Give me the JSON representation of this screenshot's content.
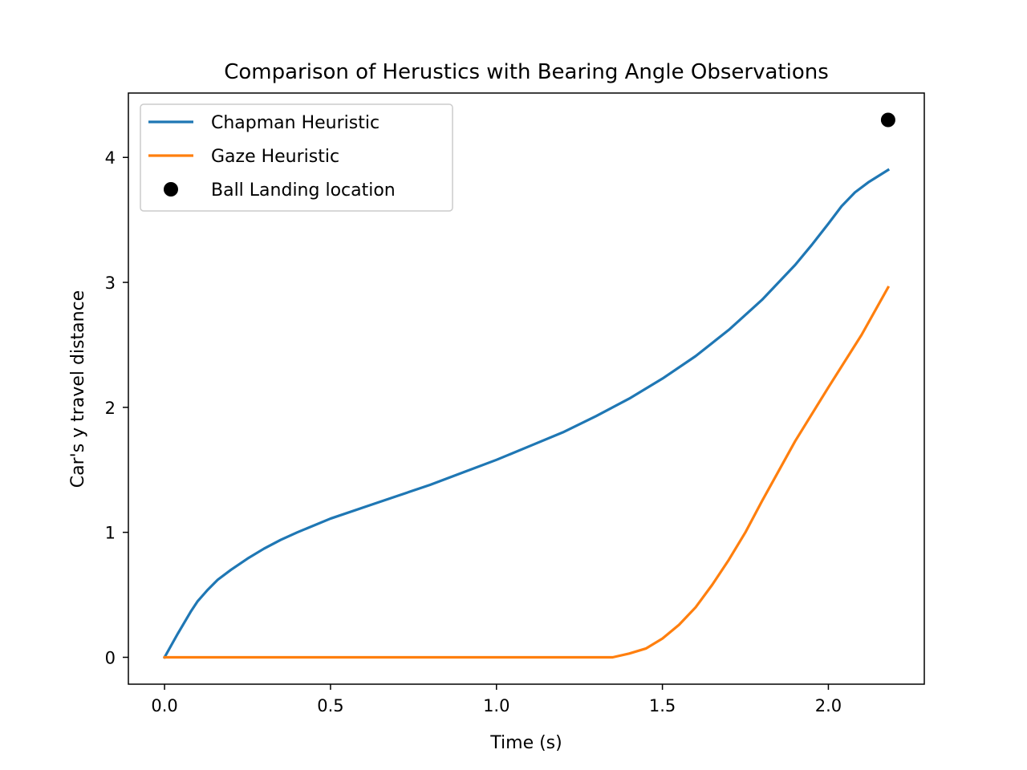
{
  "chart_data": {
    "type": "line",
    "title": "Comparison of Herustics with Bearing Angle Observations",
    "xlabel": "Time (s)",
    "ylabel": "Car's y travel distance",
    "xlim": [
      -0.109,
      2.289
    ],
    "ylim": [
      -0.215,
      4.515
    ],
    "xticks": [
      0.0,
      0.5,
      1.0,
      1.5,
      2.0
    ],
    "xtick_labels": [
      "0.0",
      "0.5",
      "1.0",
      "1.5",
      "2.0"
    ],
    "yticks": [
      0,
      1,
      2,
      3,
      4
    ],
    "ytick_labels": [
      "0",
      "1",
      "2",
      "3",
      "4"
    ],
    "grid": false,
    "legend_position": "upper-left",
    "series": [
      {
        "name": "Chapman Heuristic",
        "kind": "line",
        "color": "#1f77b4",
        "points": [
          [
            0.0,
            0.0
          ],
          [
            0.04,
            0.19
          ],
          [
            0.08,
            0.37
          ],
          [
            0.1,
            0.45
          ],
          [
            0.13,
            0.54
          ],
          [
            0.16,
            0.62
          ],
          [
            0.2,
            0.7
          ],
          [
            0.25,
            0.79
          ],
          [
            0.3,
            0.87
          ],
          [
            0.35,
            0.94
          ],
          [
            0.4,
            1.0
          ],
          [
            0.5,
            1.11
          ],
          [
            0.6,
            1.2
          ],
          [
            0.7,
            1.29
          ],
          [
            0.8,
            1.38
          ],
          [
            0.9,
            1.48
          ],
          [
            1.0,
            1.58
          ],
          [
            1.1,
            1.69
          ],
          [
            1.2,
            1.8
          ],
          [
            1.3,
            1.93
          ],
          [
            1.4,
            2.07
          ],
          [
            1.5,
            2.23
          ],
          [
            1.6,
            2.41
          ],
          [
            1.7,
            2.62
          ],
          [
            1.8,
            2.86
          ],
          [
            1.9,
            3.14
          ],
          [
            1.95,
            3.3
          ],
          [
            2.0,
            3.47
          ],
          [
            2.04,
            3.61
          ],
          [
            2.08,
            3.72
          ],
          [
            2.12,
            3.8
          ],
          [
            2.18,
            3.9
          ]
        ]
      },
      {
        "name": "Gaze Heuristic",
        "kind": "line",
        "color": "#ff7f0e",
        "points": [
          [
            0.0,
            0.0
          ],
          [
            0.5,
            0.0
          ],
          [
            1.0,
            0.0
          ],
          [
            1.3,
            0.0
          ],
          [
            1.35,
            0.0
          ],
          [
            1.4,
            0.03
          ],
          [
            1.45,
            0.07
          ],
          [
            1.5,
            0.15
          ],
          [
            1.55,
            0.26
          ],
          [
            1.6,
            0.4
          ],
          [
            1.65,
            0.58
          ],
          [
            1.7,
            0.78
          ],
          [
            1.75,
            1.0
          ],
          [
            1.8,
            1.25
          ],
          [
            1.9,
            1.73
          ],
          [
            2.0,
            2.16
          ],
          [
            2.1,
            2.58
          ],
          [
            2.18,
            2.96
          ]
        ]
      },
      {
        "name": "Ball Landing location",
        "kind": "scatter",
        "color": "#000000",
        "points": [
          [
            2.18,
            4.3
          ]
        ]
      }
    ]
  }
}
